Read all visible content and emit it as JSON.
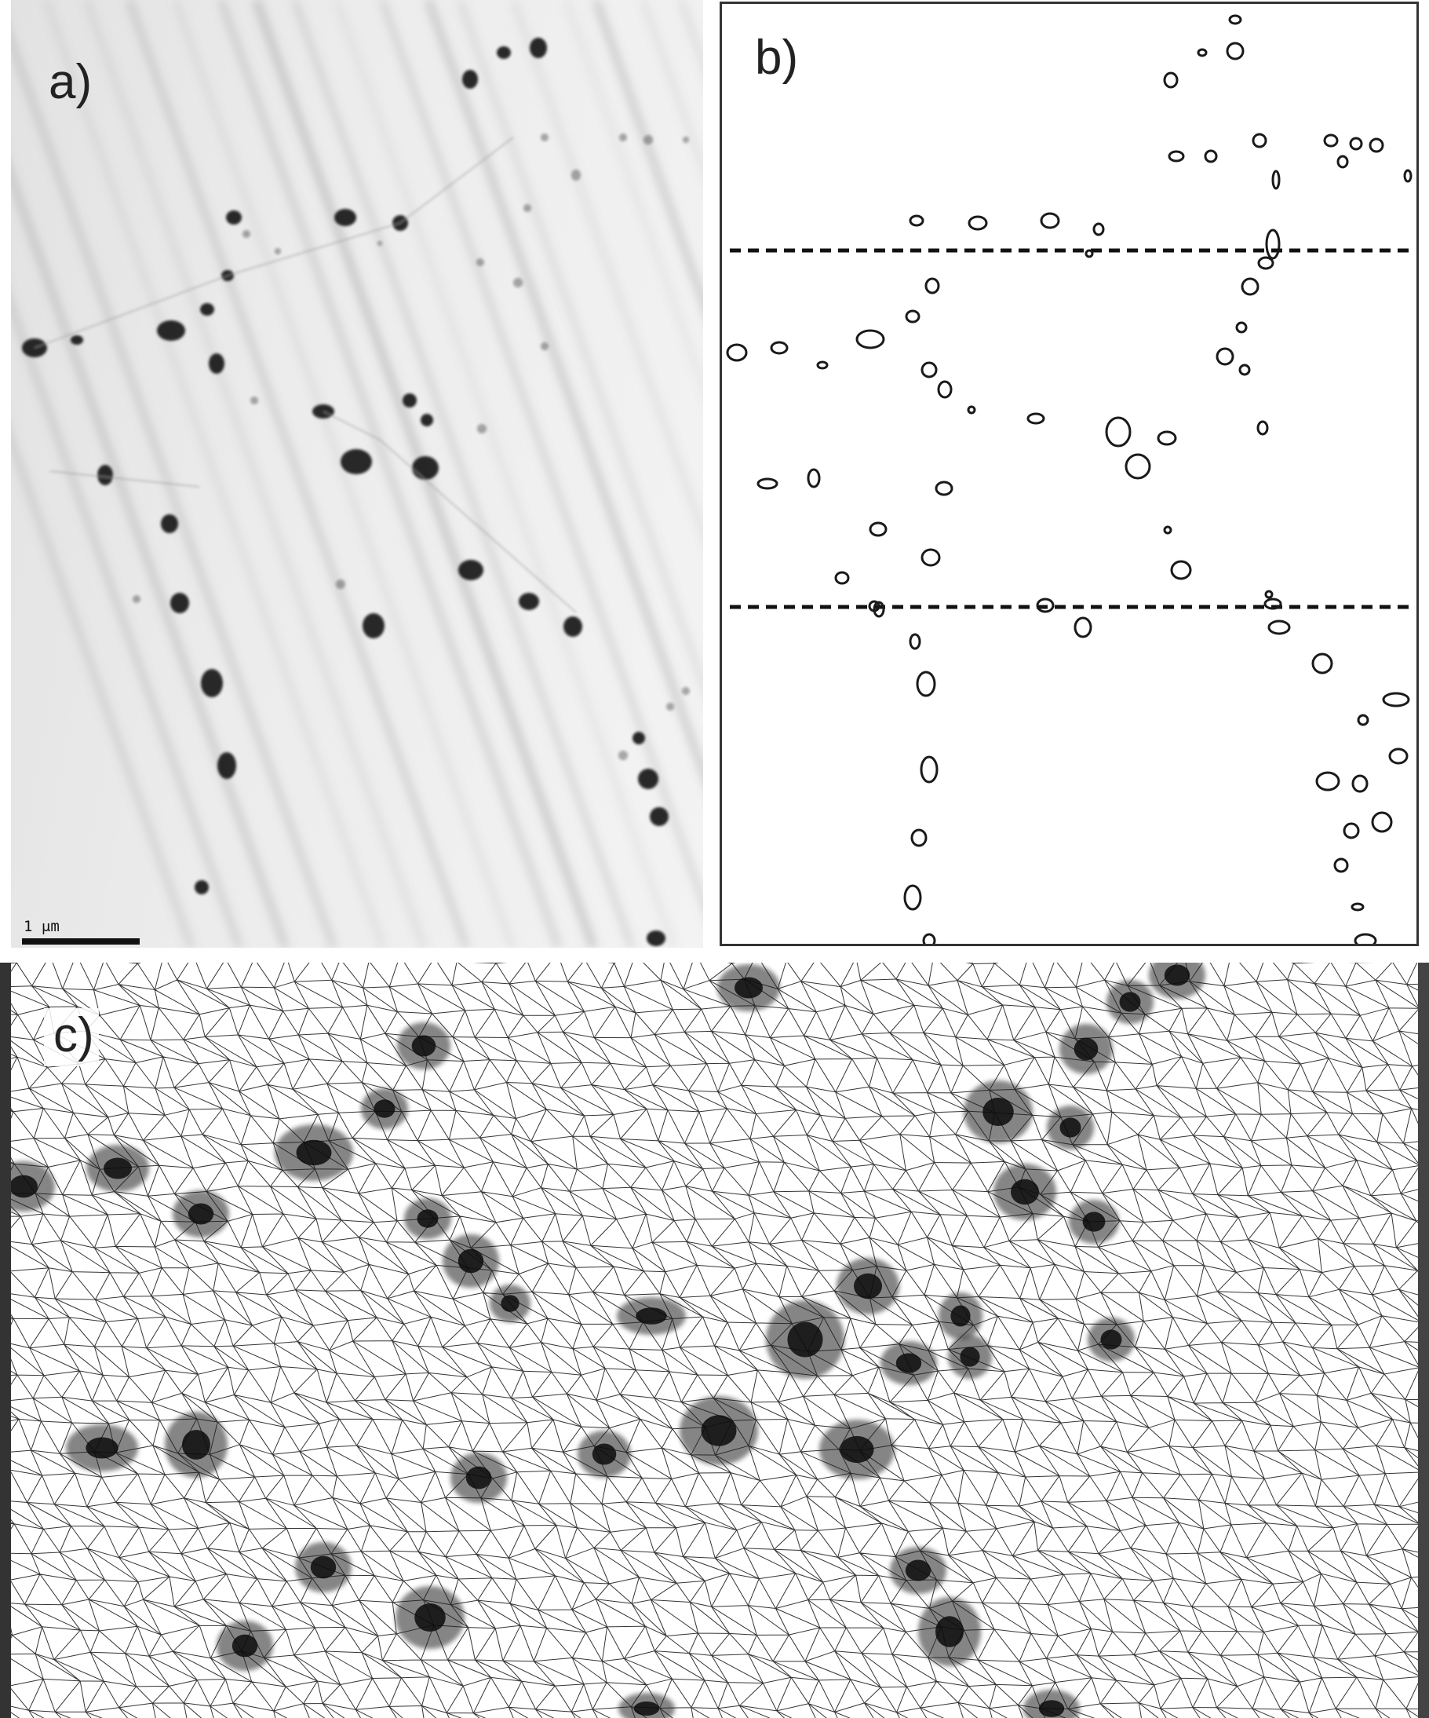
{
  "figure": {
    "panel_a": {
      "label": "a)",
      "scale_bar_label": "1 μm"
    },
    "panel_b": {
      "label": "b)"
    },
    "panel_c": {
      "label": "c)"
    },
    "colors": {
      "particle": "#151515",
      "outline": "#1a1a1a",
      "mesh": "#111111",
      "background_a": "#ececec"
    }
  }
}
